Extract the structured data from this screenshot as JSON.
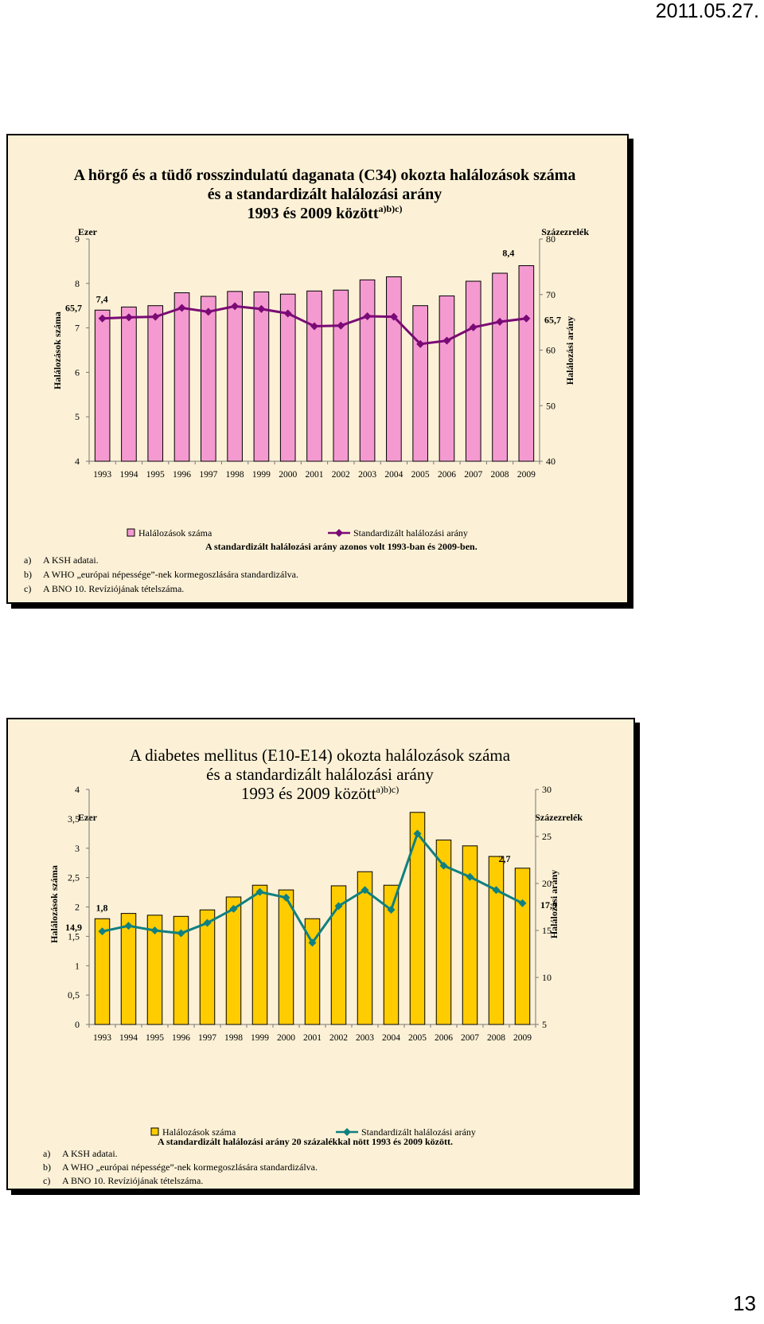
{
  "header": {
    "date": "2011.05.27."
  },
  "footer": {
    "page_number": "13"
  },
  "chart_data": [
    {
      "type": "bar+line",
      "title": [
        "A hörgő és a tüdő rosszindulatú daganata (C34) okozta halálozások száma",
        "és a standardizált halálozási arány"
      ],
      "title_line3": "1993 és 2009 között",
      "title_sup": "a)b)c)",
      "left_unit": "Ezer",
      "right_unit": "Százezrelék",
      "ylabel": "Halálozások száma",
      "y2label": "Halálozási arány",
      "ylim": [
        4,
        9
      ],
      "y2lim": [
        40,
        80
      ],
      "yticks": [
        "4",
        "5",
        "6",
        "7",
        "8",
        "9"
      ],
      "y2ticks": [
        "40",
        "50",
        "60",
        "70",
        "80"
      ],
      "categories": [
        "1993",
        "1994",
        "1995",
        "1996",
        "1997",
        "1998",
        "1999",
        "2000",
        "2001",
        "2002",
        "2003",
        "2004",
        "2005",
        "2006",
        "2007",
        "2008",
        "2009"
      ],
      "series": [
        {
          "name": "Halálozások száma",
          "kind": "bar",
          "axis": "left",
          "color": "#f49ad1",
          "values": [
            7.4,
            7.47,
            7.5,
            7.79,
            7.71,
            7.82,
            7.81,
            7.76,
            7.83,
            7.85,
            8.08,
            8.15,
            7.5,
            7.72,
            8.05,
            8.23,
            8.4
          ]
        },
        {
          "name": "Standardizált halálozási arány",
          "kind": "line",
          "axis": "right",
          "color": "#7a0a75",
          "values": [
            65.7,
            65.9,
            66.0,
            67.6,
            66.9,
            67.9,
            67.4,
            66.6,
            64.3,
            64.4,
            66.1,
            66.0,
            61.1,
            61.7,
            64.1,
            65.1,
            65.7
          ]
        }
      ],
      "data_labels": {
        "first_bar": "7,4",
        "first_line": "65,7",
        "last_bar": "8,4",
        "last_line": "65,7"
      },
      "note": "A standardizált halálozási arány azonos volt 1993-ban és 2009-ben.",
      "footnotes": [
        {
          "key": "a)",
          "text": "A KSH adatai."
        },
        {
          "key": "b)",
          "text": "A WHO „európai népessége”-nek kormegoszlására standardizálva."
        },
        {
          "key": "c)",
          "text": "A BNO 10. Revíziójának tételszáma."
        }
      ]
    },
    {
      "type": "bar+line",
      "title": [
        "A diabetes mellitus (E10-E14) okozta halálozások száma",
        "és a standardizált halálozási arány"
      ],
      "title_line3": "1993 és 2009 között",
      "title_sup": "a)b)c)",
      "left_unit": "Ezer",
      "right_unit": "Százezrelék",
      "ylabel": "Halálozások száma",
      "y2label": "Halálozási arány",
      "ylim": [
        0,
        4
      ],
      "y2lim": [
        5,
        30
      ],
      "yticks": [
        "0",
        "0,5",
        "1",
        "1,5",
        "2",
        "2,5",
        "3",
        "3,5",
        "4"
      ],
      "y2ticks": [
        "5",
        "10",
        "15",
        "20",
        "25",
        "30"
      ],
      "categories": [
        "1993",
        "1994",
        "1995",
        "1996",
        "1997",
        "1998",
        "1999",
        "2000",
        "2001",
        "2002",
        "2003",
        "2004",
        "2005",
        "2006",
        "2007",
        "2008",
        "2009"
      ],
      "series": [
        {
          "name": "Halálozások száma",
          "kind": "bar",
          "axis": "left",
          "color": "#ffcc00",
          "values": [
            1.8,
            1.89,
            1.86,
            1.84,
            1.95,
            2.17,
            2.37,
            2.29,
            1.8,
            2.36,
            2.6,
            2.37,
            3.61,
            3.14,
            3.04,
            2.86,
            2.66
          ]
        },
        {
          "name": "Standardizált halálozási arány",
          "kind": "line",
          "axis": "right",
          "color": "#0f8080",
          "values": [
            14.9,
            15.5,
            15.0,
            14.7,
            15.8,
            17.3,
            19.1,
            18.5,
            13.7,
            17.6,
            19.3,
            17.2,
            25.3,
            21.9,
            20.7,
            19.3,
            17.9
          ]
        }
      ],
      "data_labels": {
        "first_bar": "1,8",
        "first_line": "14,9",
        "last_bar": "2,7",
        "last_line": "17,9"
      },
      "note": "A standardizált halálozási arány 20 százalékkal nött 1993 és 2009 között.",
      "footnotes": [
        {
          "key": "a)",
          "text": "A KSH adatai."
        },
        {
          "key": "b)",
          "text": "A WHO „európai népessége”-nek kormegoszlására standardizálva."
        },
        {
          "key": "c)",
          "text": "A BNO 10. Revíziójának tételszáma."
        }
      ]
    }
  ]
}
